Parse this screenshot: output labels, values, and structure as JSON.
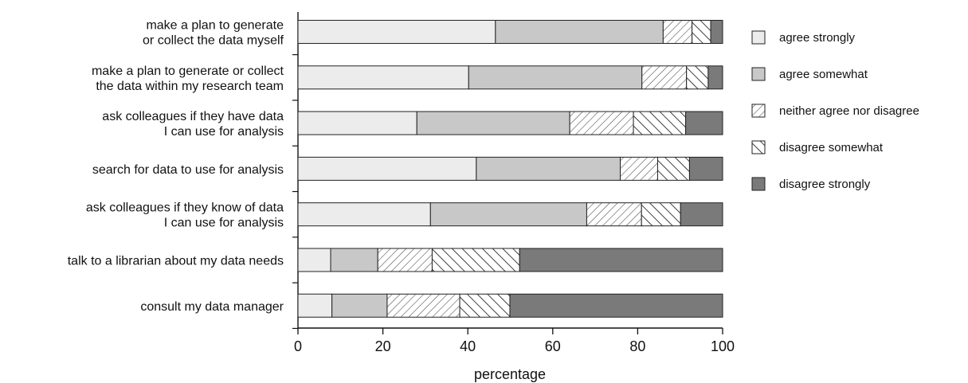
{
  "chart_data": {
    "type": "bar",
    "orientation": "horizontal",
    "stacked": true,
    "title": "",
    "xlabel": "percentage",
    "ylabel": "",
    "xlim": [
      0,
      100
    ],
    "xticks": [
      0,
      20,
      40,
      60,
      80,
      100
    ],
    "grid": false,
    "legend_position": "right",
    "categories": [
      [
        "make a plan to generate",
        "or collect the data myself"
      ],
      [
        "make a plan to generate or collect",
        "the data within my research team"
      ],
      [
        "ask colleagues if they have data",
        "I can use for analysis"
      ],
      [
        "search for data to use for analysis"
      ],
      [
        "ask colleagues if they know of data",
        "I can use for analysis"
      ],
      [
        "talk to a librarian about my data needs"
      ],
      [
        "consult my data manager"
      ]
    ],
    "series": [
      {
        "name": "agree strongly",
        "fill": "light",
        "color": "#ececec",
        "values": [
          46.5,
          40.2,
          28.0,
          42.0,
          31.2,
          7.7,
          8.0
        ]
      },
      {
        "name": "agree somewhat",
        "fill": "medium",
        "color": "#c8c8c8",
        "values": [
          39.5,
          40.8,
          36.0,
          33.9,
          36.8,
          11.1,
          13.0
        ]
      },
      {
        "name": "neither agree nor disagree",
        "fill": "hatch-forward",
        "color": "#ffffff",
        "values": [
          6.8,
          10.5,
          15.0,
          8.8,
          12.9,
          12.8,
          17.1
        ]
      },
      {
        "name": "disagree somewhat",
        "fill": "hatch-back",
        "color": "#ffffff",
        "values": [
          4.4,
          5.1,
          12.3,
          7.5,
          9.2,
          20.6,
          11.8
        ]
      },
      {
        "name": "disagree strongly",
        "fill": "dark",
        "color": "#7a7a7a",
        "values": [
          2.8,
          3.4,
          8.7,
          7.8,
          9.9,
          47.8,
          50.1
        ]
      }
    ]
  }
}
